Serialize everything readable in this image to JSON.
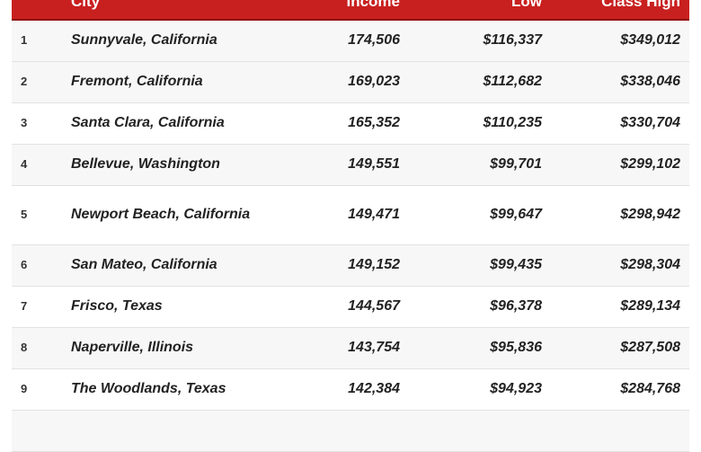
{
  "table": {
    "headers": {
      "rank": "",
      "city": "City",
      "income": "Income",
      "low": "Low",
      "high": "Class High"
    },
    "rows": [
      {
        "rank": "1",
        "city": "Sunnyvale, California",
        "income": "174,506",
        "low": "$116,337",
        "high": "$349,012"
      },
      {
        "rank": "2",
        "city": "Fremont, California",
        "income": "169,023",
        "low": "$112,682",
        "high": "$338,046"
      },
      {
        "rank": "3",
        "city": "Santa Clara, California",
        "income": "165,352",
        "low": "$110,235",
        "high": "$330,704"
      },
      {
        "rank": "4",
        "city": "Bellevue, Washington",
        "income": "149,551",
        "low": "$99,701",
        "high": "$299,102"
      },
      {
        "rank": "5",
        "city": "Newport Beach, California",
        "income": "149,471",
        "low": "$99,647",
        "high": "$298,942"
      },
      {
        "rank": "6",
        "city": "San Mateo, California",
        "income": "149,152",
        "low": "$99,435",
        "high": "$298,304"
      },
      {
        "rank": "7",
        "city": "Frisco, Texas",
        "income": "144,567",
        "low": "$96,378",
        "high": "$289,134"
      },
      {
        "rank": "8",
        "city": "Naperville, Illinois",
        "income": "143,754",
        "low": "$95,836",
        "high": "$287,508"
      },
      {
        "rank": "9",
        "city": "The Woodlands, Texas",
        "income": "142,384",
        "low": "$94,923",
        "high": "$284,768"
      }
    ]
  },
  "colors": {
    "header_bg": "#c8201f",
    "header_text": "#ffffff",
    "row_alt_bg": "#f7f7f7"
  }
}
